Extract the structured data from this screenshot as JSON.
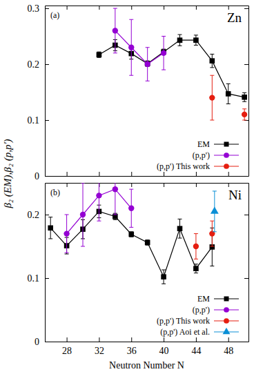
{
  "chart_data": [
    {
      "type": "scatter",
      "panel_label": "(a)",
      "title": "Zn",
      "y_label": "β₂ (EM),β₂ (p,p')",
      "xlim": [
        25.3,
        50.5
      ],
      "xticks": [
        28,
        32,
        36,
        40,
        44,
        48
      ],
      "ylim": [
        0,
        0.305
      ],
      "yticks": [
        0,
        0.1,
        0.2,
        0.3
      ],
      "tick_labels": "y",
      "legend": "lower right",
      "series": [
        {
          "name": "EM",
          "color": "#000000",
          "marker": "square",
          "line_style": "solid",
          "x": [
            32,
            34,
            36,
            38,
            40,
            42,
            44,
            46,
            48,
            50
          ],
          "values": [
            0.217,
            0.234,
            0.219,
            0.201,
            0.222,
            0.243,
            0.243,
            0.206,
            0.147,
            0.141
          ],
          "errors": [
            0.005,
            0.01,
            0.01,
            0.005,
            0.005,
            0.01,
            0.009,
            0.012,
            0.018,
            0.008
          ]
        },
        {
          "name": "(p,p')",
          "color": "#9400d3",
          "marker": "circle",
          "line_style": "solid",
          "x": [
            34,
            36,
            38,
            40
          ],
          "values": [
            0.26,
            0.23,
            0.2,
            0.22
          ],
          "errors": [
            0.04,
            0.05,
            0.03,
            0.03
          ]
        },
        {
          "name": "(p,p') This work",
          "color": "#e51e10",
          "marker": "circle",
          "line_style": "none",
          "x": [
            46,
            50
          ],
          "values": [
            0.14,
            0.11
          ],
          "errors": [
            0.04,
            0.01
          ]
        }
      ]
    },
    {
      "type": "scatter",
      "panel_label": "(b)",
      "title": "Ni",
      "x_label": "Neutron Number N",
      "xlim": [
        25.3,
        50.5
      ],
      "xticks": [
        28,
        32,
        36,
        40,
        44,
        48
      ],
      "ylim": [
        0,
        0.25
      ],
      "yticks": [
        0,
        0.1,
        0.2
      ],
      "legend": "lower right",
      "series": [
        {
          "name": "EM",
          "color": "#000000",
          "marker": "square",
          "line_style": "solid",
          "x": [
            26,
            28,
            30,
            32,
            34,
            36,
            38,
            40,
            42,
            44,
            46
          ],
          "values": [
            0.179,
            0.151,
            0.177,
            0.205,
            0.197,
            0.169,
            0.156,
            0.102,
            0.178,
            0.115,
            0.149
          ],
          "errors": [
            0.017,
            0.013,
            0.015,
            0.01,
            0.005,
            0.004,
            0.004,
            0.011,
            0.015,
            0.007,
            0.03
          ]
        },
        {
          "name": "(p,p')",
          "color": "#9400d3",
          "marker": "circle",
          "line_style": "solid",
          "x": [
            28,
            30,
            32,
            34,
            36
          ],
          "values": [
            0.17,
            0.2,
            0.23,
            0.24,
            0.21
          ],
          "errors": [
            0.03,
            0.05,
            0.04,
            0.04,
            0.03
          ]
        },
        {
          "name": "(p,p') This work",
          "color": "#e51e10",
          "marker": "circle",
          "line_style": "none",
          "x": [
            44,
            46
          ],
          "values": [
            0.15,
            0.17
          ],
          "errors": [
            0.02,
            0.02
          ]
        },
        {
          "name": "(p,p') Aoi et al.",
          "color": "#0a8fd6",
          "marker": "triangle",
          "line_style": "none",
          "x": [
            46.3
          ],
          "values": [
            0.205
          ],
          "errors": [
            0.032
          ]
        }
      ]
    }
  ]
}
